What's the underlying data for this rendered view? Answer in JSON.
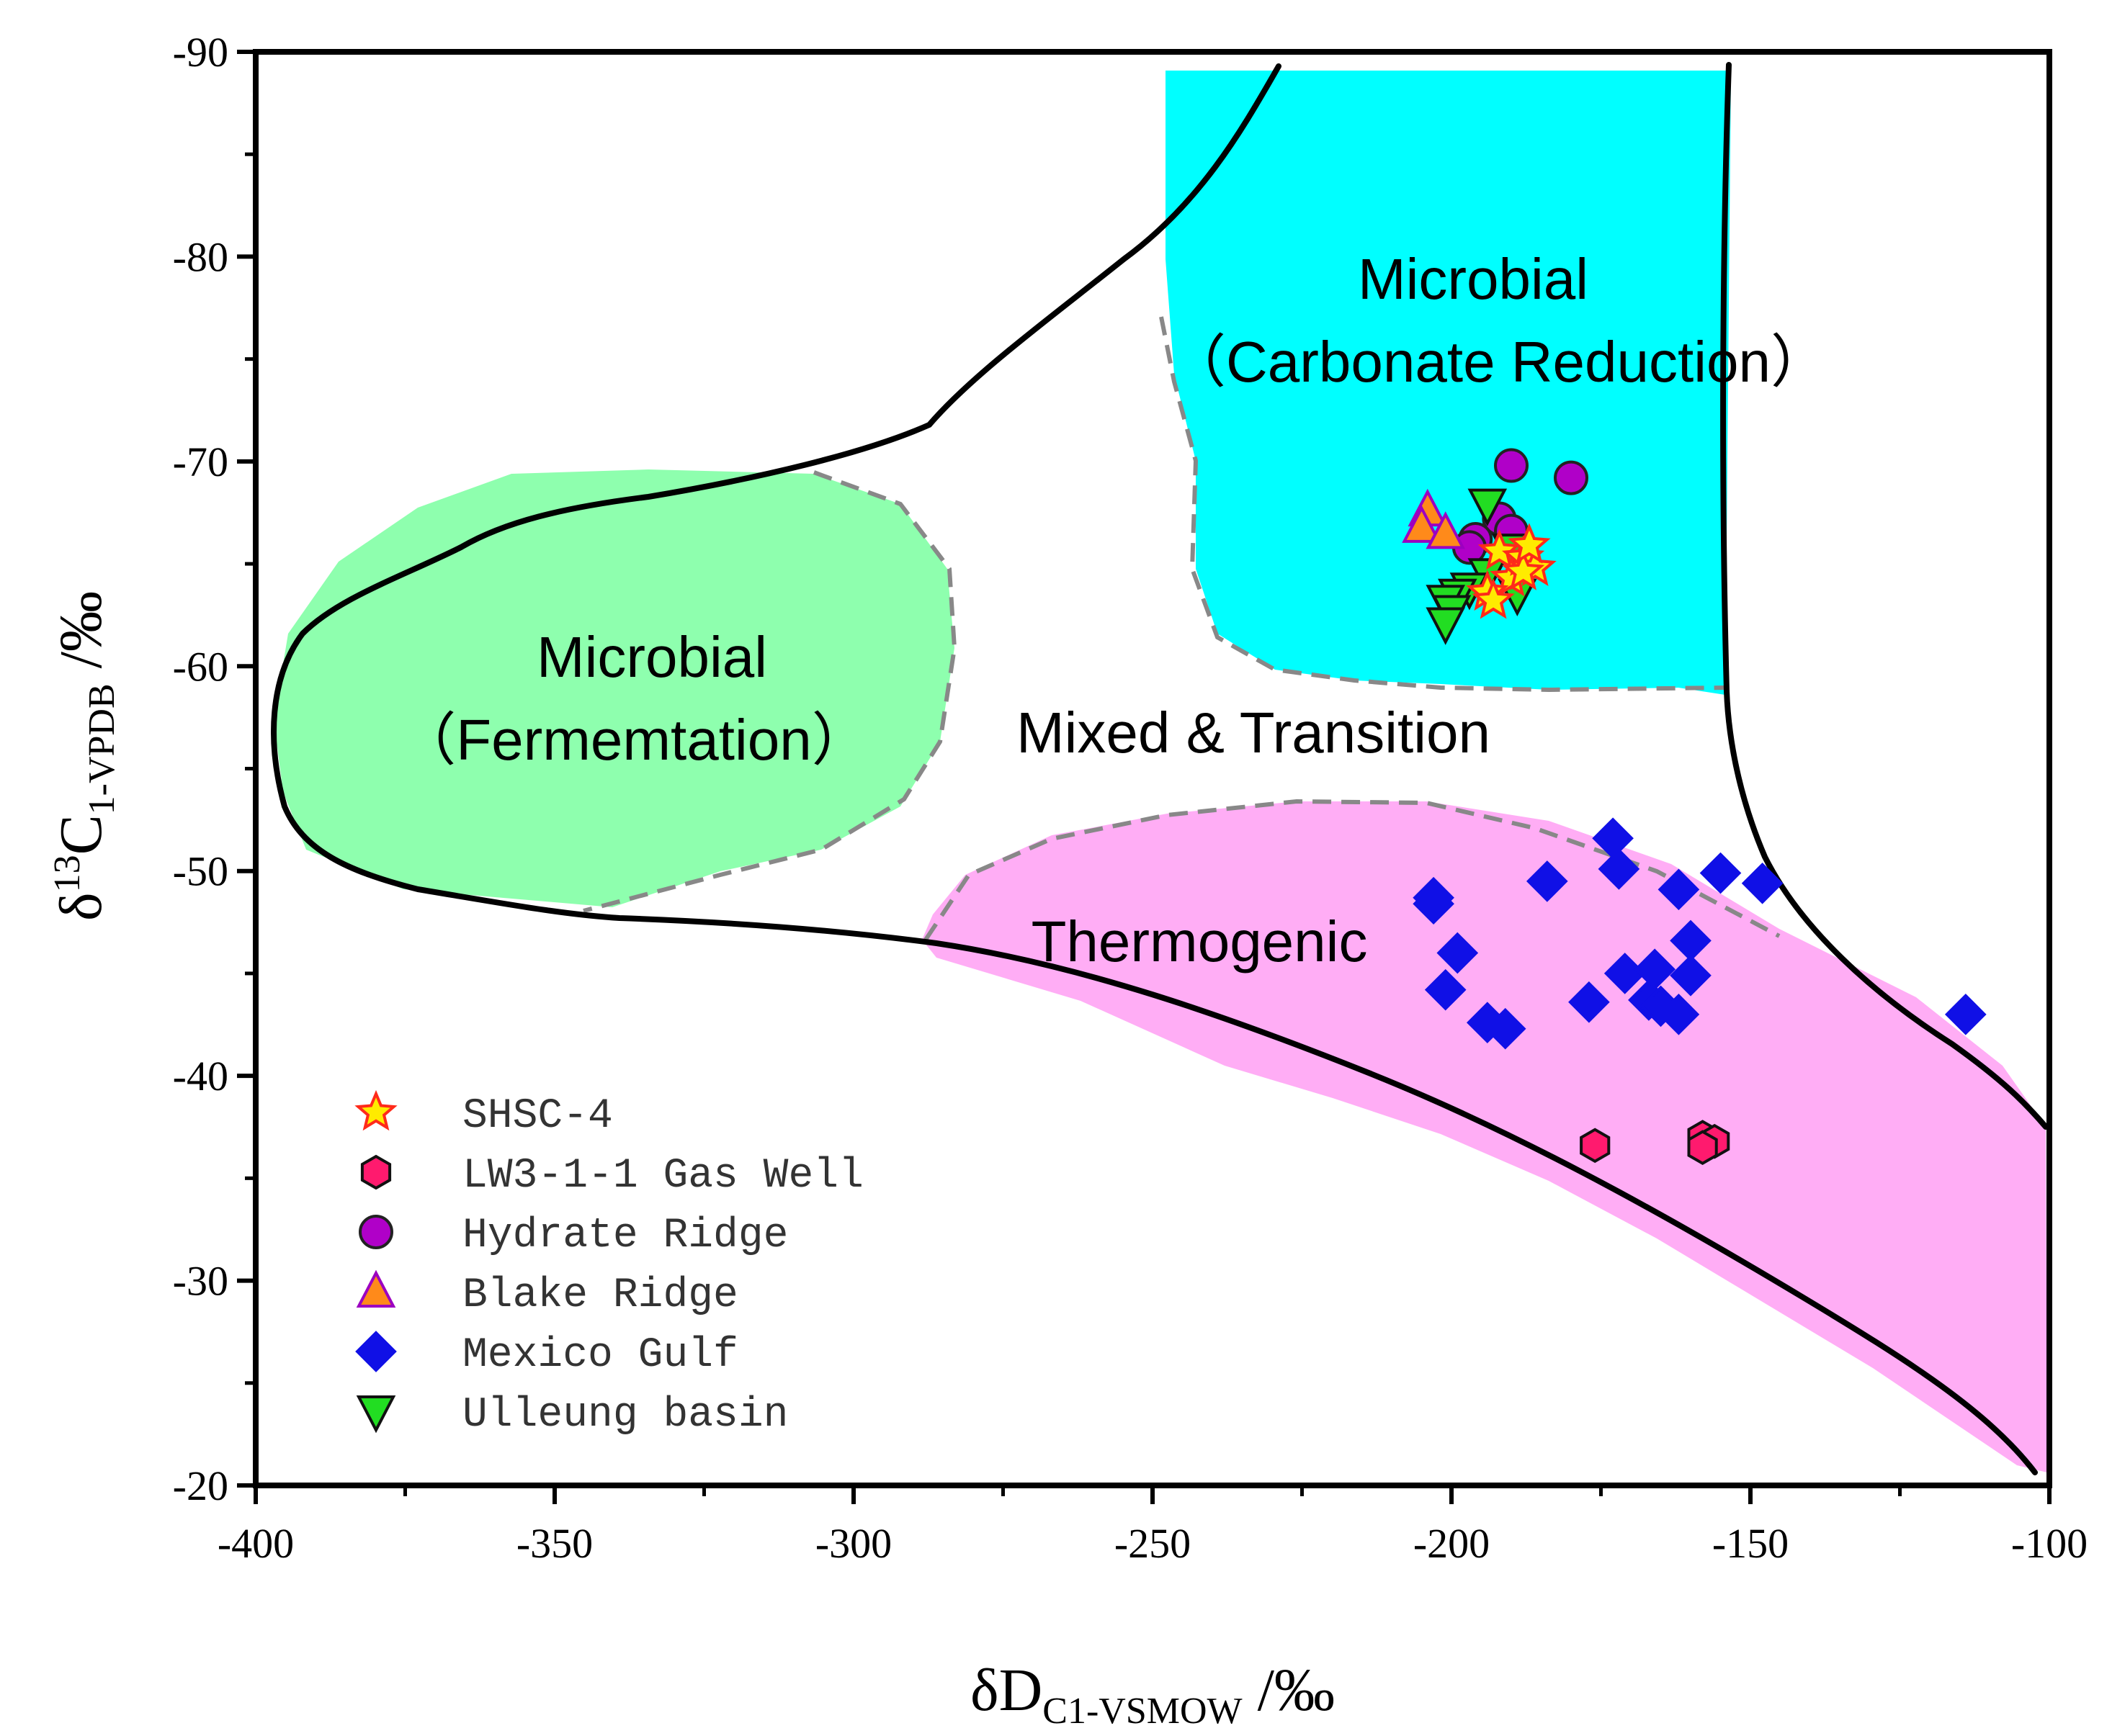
{
  "chart_data": {
    "type": "scatter",
    "title": "",
    "xlabel": {
      "main": "δD",
      "sub": "C1-VSMOW",
      "unit": " /‰"
    },
    "ylabel": {
      "main": "δ",
      "sup": "13",
      "mid": "C",
      "sub": "1-VPDB",
      "unit": " /‰"
    },
    "xlim": [
      -400,
      -100
    ],
    "ylim": [
      -20,
      -90
    ],
    "x_ticks": [
      "-400",
      "-350",
      "-300",
      "-250",
      "-200",
      "-150",
      "-100"
    ],
    "y_ticks": [
      "-90",
      "-80",
      "-70",
      "-60",
      "-50",
      "-40",
      "-30",
      "-20"
    ],
    "grid": false,
    "legend_position": "bottom-left",
    "regions": [
      {
        "name": "Microbial Carbonate Reduction",
        "line1": "Microbial",
        "line2": "（Carbonate Reduction）",
        "color": "#00ffff"
      },
      {
        "name": "Microbial Fermentation",
        "line1": "Microbial",
        "line2": "（Fermemtation）",
        "color": "#8effae"
      },
      {
        "name": "Thermogenic",
        "line1": "Thermogenic",
        "line2": "",
        "color": "#ffadf5"
      },
      {
        "name": "Mixed & Transition",
        "line1": "Mixed & Transition",
        "line2": "",
        "color": "#ffffff"
      }
    ],
    "series": [
      {
        "name": "SHSC-4",
        "marker": "star",
        "fill": "#ffeb00",
        "stroke": "#ff2a1a",
        "points": [
          [
            -192,
            -65.6
          ],
          [
            -190,
            -64.3
          ],
          [
            -188,
            -65.3
          ],
          [
            -186,
            -64.8
          ],
          [
            -194,
            -63.6
          ],
          [
            -193,
            -63.2
          ],
          [
            -188,
            -64.6
          ],
          [
            -187,
            -65.9
          ]
        ]
      },
      {
        "name": "LW3-1-1 Gas Well",
        "marker": "hexagon",
        "fill": "#ff1a6e",
        "stroke": "#111111",
        "points": [
          [
            -176,
            -36.6
          ],
          [
            -158,
            -37
          ],
          [
            -156,
            -36.8
          ],
          [
            -158,
            -36.5
          ]
        ]
      },
      {
        "name": "Hydrate Ridge",
        "marker": "circle",
        "fill": "#b000c8",
        "stroke": "#222222",
        "points": [
          [
            -190,
            -69.8
          ],
          [
            -180,
            -69.2
          ],
          [
            -192,
            -67.2
          ],
          [
            -190,
            -66.6
          ],
          [
            -196,
            -66.2
          ],
          [
            -197,
            -65.8
          ]
        ]
      },
      {
        "name": "Blake Ridge",
        "marker": "triangle-up",
        "fill": "#ff8a1a",
        "stroke": "#9c00c0",
        "points": [
          [
            -204,
            -67.6
          ],
          [
            -205,
            -66.8
          ],
          [
            -201,
            -66.5
          ]
        ]
      },
      {
        "name": "Mexico Gulf",
        "marker": "diamond",
        "fill": "#1010e6",
        "stroke": "#1010e6",
        "points": [
          [
            -173,
            -51.6
          ],
          [
            -172,
            -50.1
          ],
          [
            -155,
            -49.9
          ],
          [
            -148,
            -49.4
          ],
          [
            -184,
            -49.5
          ],
          [
            -162,
            -49.1
          ],
          [
            -203,
            -48.7
          ],
          [
            -203,
            -48.4
          ],
          [
            -160,
            -46.6
          ],
          [
            -199,
            -46
          ],
          [
            -171,
            -45
          ],
          [
            -166,
            -45.2
          ],
          [
            -160,
            -44.9
          ],
          [
            -201,
            -44.2
          ],
          [
            -167,
            -43.7
          ],
          [
            -177,
            -43.6
          ],
          [
            -165,
            -43.4
          ],
          [
            -162,
            -43
          ],
          [
            -194,
            -42.6
          ],
          [
            -191,
            -42.3
          ],
          [
            -114,
            -43
          ]
        ]
      },
      {
        "name": "Ulleung basin",
        "marker": "triangle-down",
        "fill": "#22dd22",
        "stroke": "#111111",
        "points": [
          [
            -194,
            -67.9
          ],
          [
            -190,
            -65.7
          ],
          [
            -194,
            -64.5
          ],
          [
            -197,
            -63.8
          ],
          [
            -199,
            -63.5
          ],
          [
            -201,
            -63.2
          ],
          [
            -200,
            -62.7
          ],
          [
            -201,
            -62.1
          ],
          [
            -189,
            -63.5
          ]
        ]
      }
    ]
  }
}
